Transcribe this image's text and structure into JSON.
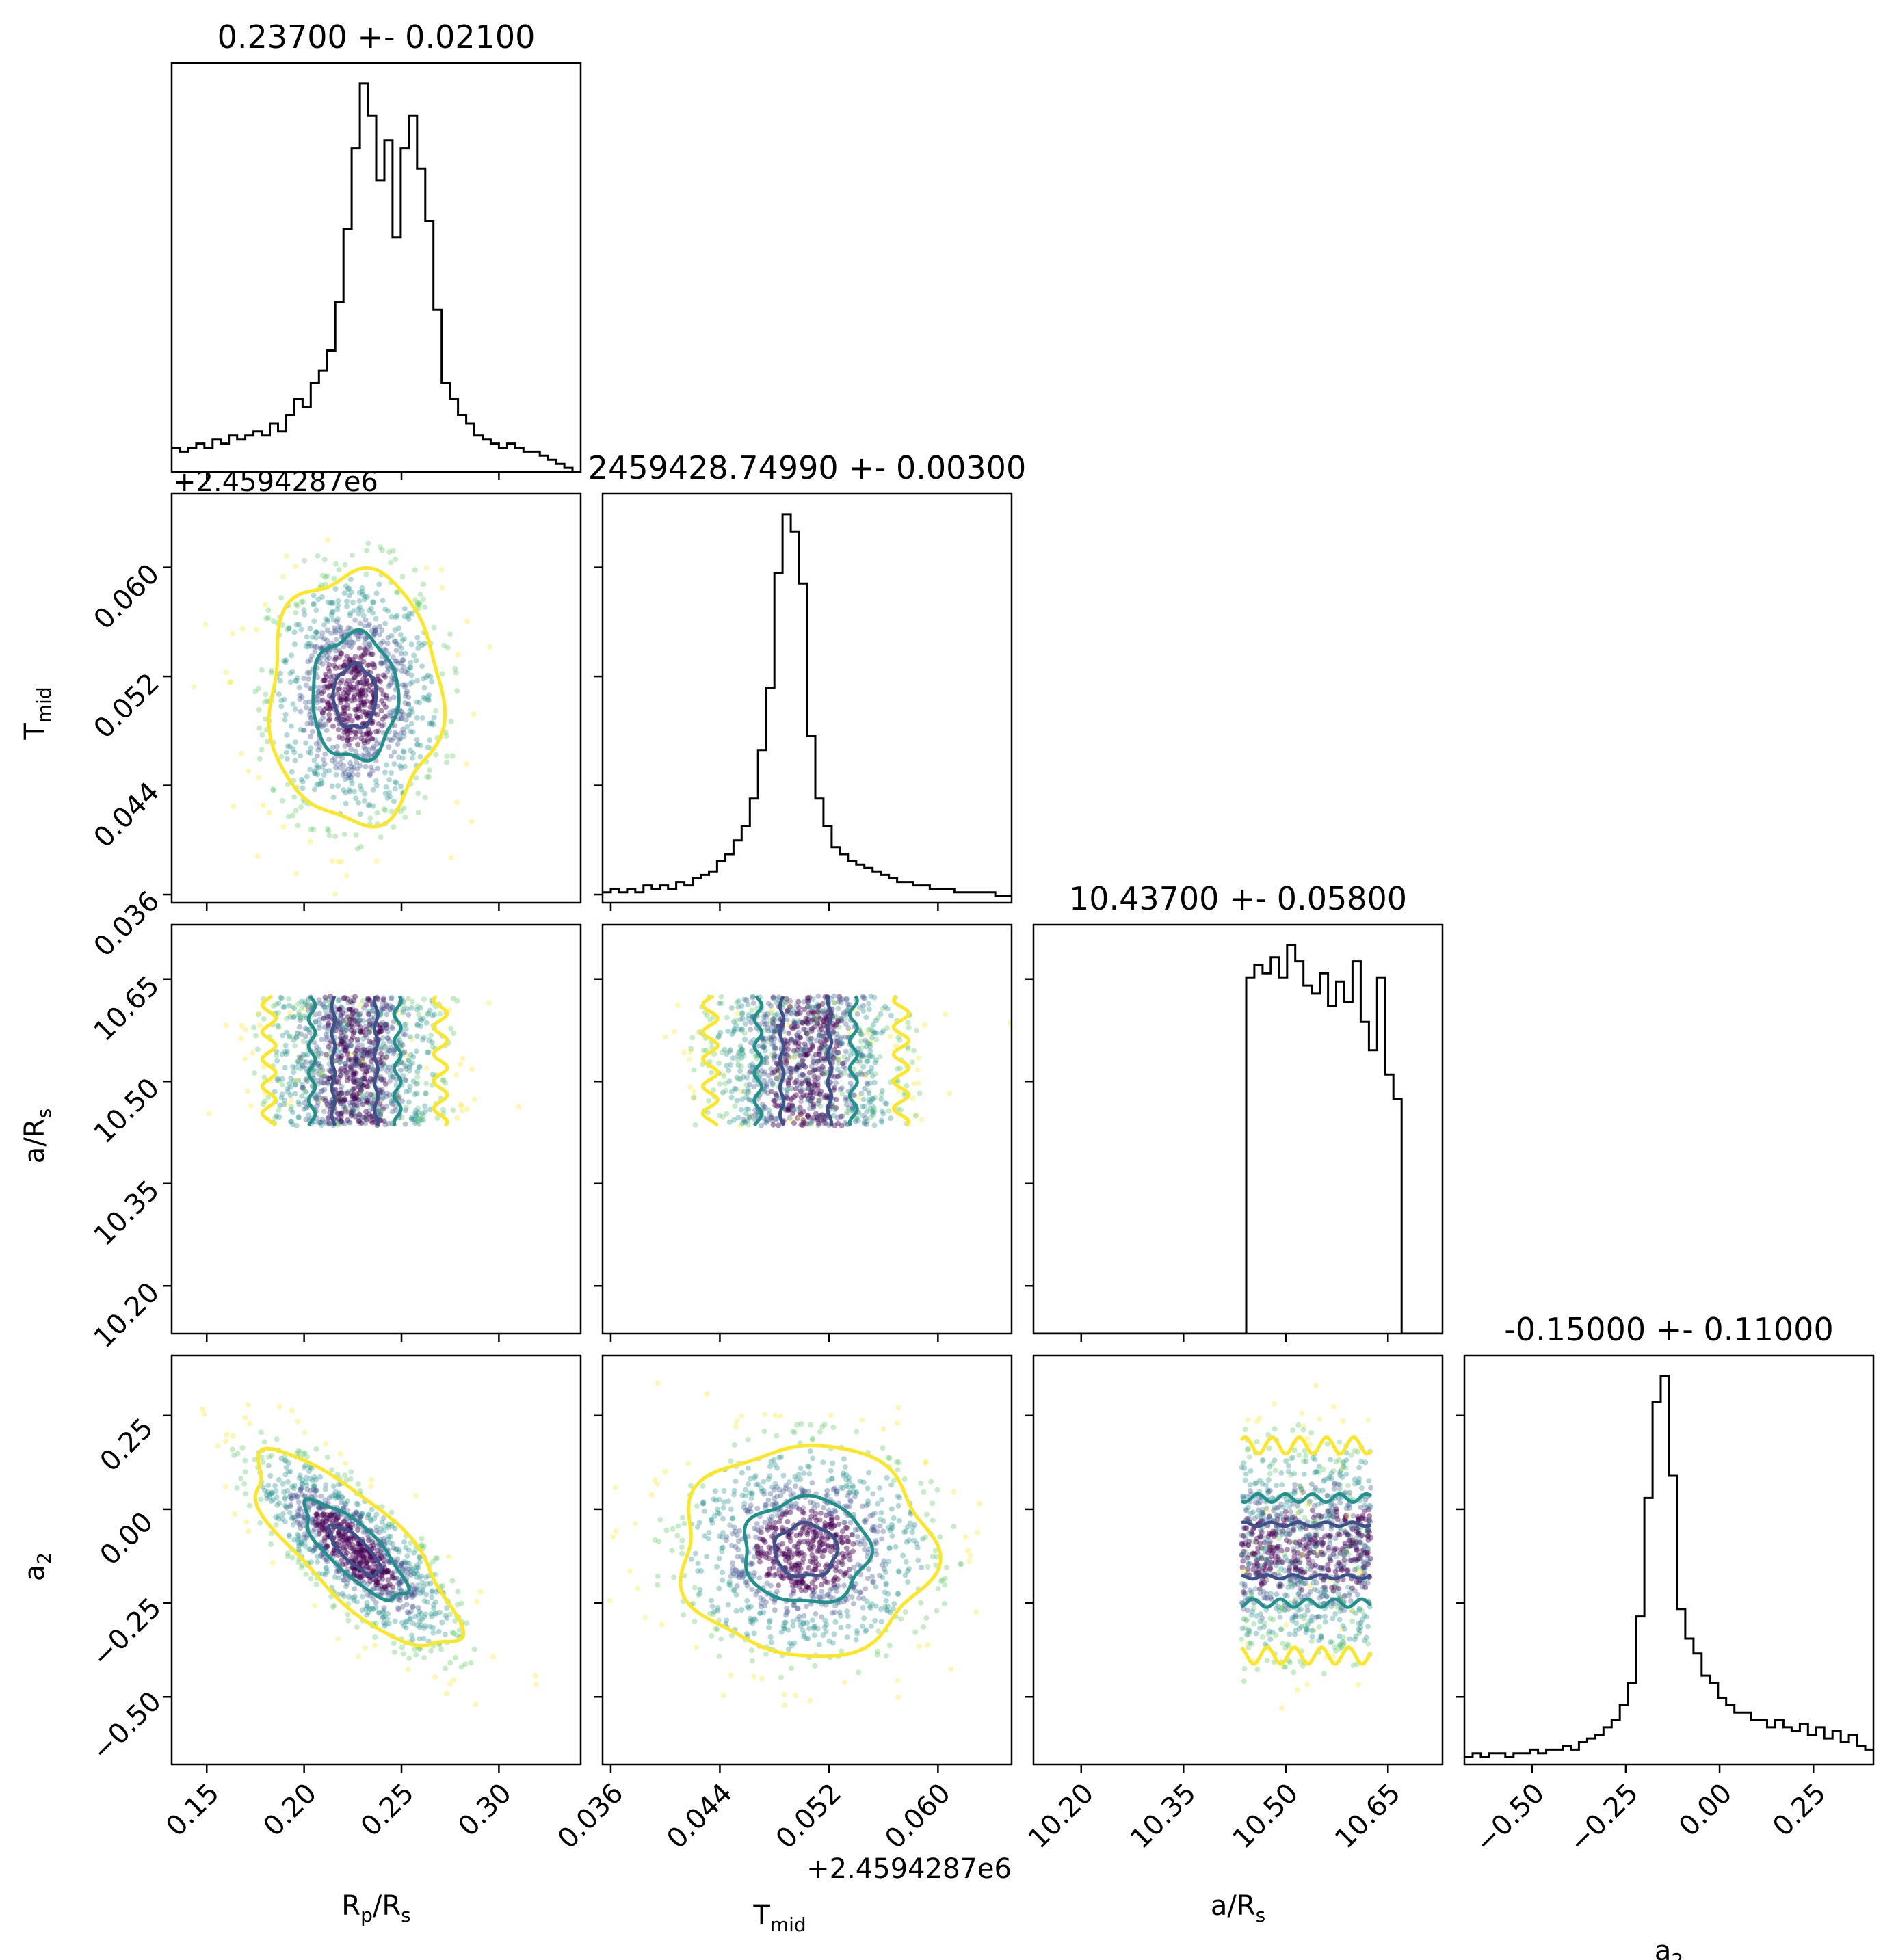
{
  "chart_data": {
    "type": "corner",
    "parameters": [
      "R_p/R_s",
      "T_mid",
      "a/R_s",
      "a_2"
    ],
    "axis_labels": {
      "R_p/R_s": {
        "main": "R",
        "sub1": "p",
        "mid": "/R",
        "sub2": "s"
      },
      "T_mid": {
        "main": "T",
        "sub1": "mid",
        "mid": "",
        "sub2": ""
      },
      "a/R_s": {
        "main": "a/R",
        "sub1": "s",
        "mid": "",
        "sub2": ""
      },
      "a_2": {
        "main": "a",
        "sub1": "2",
        "mid": "",
        "sub2": ""
      }
    },
    "titles": [
      "0.23700 +- 0.02100",
      "2459428.74990 +- 0.00300",
      "10.43700 +- 0.05800",
      "-0.15000 +- 0.11000"
    ],
    "offset_text": "+2.4594287e6",
    "ranges": {
      "R_p/R_s": [
        0.132,
        0.342
      ],
      "T_mid": [
        0.0354,
        0.0654
      ],
      "a/R_s": [
        10.13,
        10.73
      ],
      "a_2": [
        -0.68,
        0.41
      ]
    },
    "ticks": {
      "R_p/R_s": {
        "values": [
          0.15,
          0.2,
          0.25,
          0.3
        ],
        "labels": [
          "0.15",
          "0.20",
          "0.25",
          "0.30"
        ]
      },
      "T_mid": {
        "values": [
          0.036,
          0.044,
          0.052,
          0.06
        ],
        "labels": [
          "0.036",
          "0.044",
          "0.052",
          "0.060"
        ]
      },
      "a/R_s": {
        "values": [
          10.2,
          10.35,
          10.5,
          10.65
        ],
        "labels": [
          "10.20",
          "10.35",
          "10.50",
          "10.65"
        ]
      },
      "a_2": {
        "values": [
          -0.5,
          -0.25,
          0.0,
          0.25
        ],
        "labels": [
          "−0.50",
          "−0.25",
          "0.00",
          "0.25"
        ]
      }
    },
    "histograms": {
      "R_p/R_s": {
        "bin_start": 0.132,
        "bin_width": 0.0042,
        "counts": [
          6,
          5,
          6,
          7,
          6,
          8,
          7,
          9,
          8,
          9,
          10,
          9,
          12,
          10,
          14,
          18,
          16,
          22,
          25,
          30,
          42,
          60,
          80,
          96,
          88,
          72,
          82,
          58,
          80,
          88,
          75,
          62,
          40,
          22,
          18,
          14,
          12,
          9,
          8,
          7,
          6,
          7,
          6,
          5,
          5,
          4,
          3,
          2,
          1,
          0
        ]
      },
      "T_mid": {
        "bin_start": 0.0354,
        "bin_width": 0.0006,
        "counts": [
          3,
          4,
          3,
          4,
          3,
          5,
          4,
          5,
          4,
          6,
          5,
          7,
          8,
          9,
          12,
          14,
          18,
          22,
          30,
          44,
          62,
          95,
          112,
          107,
          92,
          48,
          30,
          22,
          16,
          14,
          12,
          11,
          10,
          9,
          8,
          7,
          6,
          6,
          5,
          5,
          4,
          4,
          4,
          3,
          3,
          3,
          3,
          3,
          2,
          2
        ]
      },
      "a/R_s": {
        "bin_start": 10.13,
        "bin_width": 0.012,
        "counts": [
          0,
          0,
          0,
          0,
          0,
          0,
          0,
          0,
          0,
          0,
          0,
          0,
          0,
          0,
          0,
          0,
          0,
          0,
          0,
          0,
          0,
          0,
          0,
          0,
          0,
          0,
          88,
          91,
          89,
          93,
          88,
          96,
          92,
          86,
          84,
          89,
          81,
          87,
          82,
          92,
          77,
          70,
          88,
          64,
          58,
          0,
          0,
          0,
          0,
          0
        ]
      },
      "a_2": {
        "bin_start": -0.68,
        "bin_width": 0.0218,
        "counts": [
          2,
          3,
          2,
          3,
          3,
          2,
          3,
          3,
          4,
          3,
          4,
          4,
          5,
          4,
          6,
          7,
          8,
          10,
          12,
          16,
          22,
          40,
          72,
          98,
          105,
          78,
          42,
          34,
          30,
          24,
          22,
          18,
          16,
          14,
          14,
          12,
          12,
          10,
          12,
          10,
          9,
          11,
          8,
          10,
          7,
          9,
          6,
          8,
          5,
          4
        ]
      }
    },
    "pairs": [
      {
        "x": "R_p/R_s",
        "y": "T_mid",
        "mean": [
          0.226,
          0.0505
        ],
        "sd": [
          0.022,
          0.0046
        ],
        "rho": 0.0
      },
      {
        "x": "R_p/R_s",
        "y": "a/R_s",
        "mean": [
          0.226,
          10.55
        ],
        "sd": [
          0.022,
          0.055
        ],
        "rho": 0.0
      },
      {
        "x": "T_mid",
        "y": "a/R_s",
        "mean": [
          0.0503,
          10.55
        ],
        "sd": [
          0.0035,
          0.055
        ],
        "rho": 0.0
      },
      {
        "x": "R_p/R_s",
        "y": "a_2",
        "mean": [
          0.226,
          -0.11
        ],
        "sd": [
          0.026,
          0.13
        ],
        "rho": -0.78
      },
      {
        "x": "T_mid",
        "y": "a_2",
        "mean": [
          0.0503,
          -0.11
        ],
        "sd": [
          0.0046,
          0.14
        ],
        "rho": 0.0
      },
      {
        "x": "a/R_s",
        "y": "a_2",
        "mean": [
          10.55,
          -0.11
        ],
        "sd": [
          0.055,
          0.14
        ],
        "rho": 0.0
      }
    ],
    "contour_levels": [
      0.5,
      1.0,
      2.0
    ],
    "contour_colors": [
      "#3b528b",
      "#21918c",
      "#fde725"
    ],
    "point_colors": [
      "#440154",
      "#3b528b",
      "#21918c",
      "#5ec962",
      "#fde725"
    ],
    "grid": false
  }
}
